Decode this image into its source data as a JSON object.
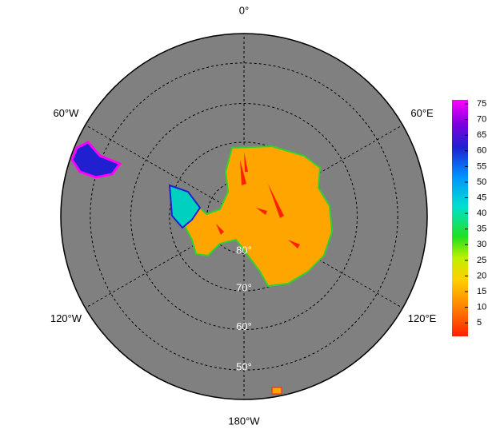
{
  "map": {
    "longitudes": [
      {
        "value": 0,
        "label": "0°"
      },
      {
        "value": 60,
        "label": "60°E"
      },
      {
        "value": 120,
        "label": "120°E"
      },
      {
        "value": 180,
        "label": "180°W"
      },
      {
        "value": -120,
        "label": "120°W"
      },
      {
        "value": -60,
        "label": "60°W"
      }
    ],
    "latitudes": [
      {
        "value": 80,
        "label": "80°"
      },
      {
        "value": 70,
        "label": "70°"
      },
      {
        "value": 60,
        "label": "60°"
      },
      {
        "value": 50,
        "label": "50°"
      }
    ],
    "colorbar": {
      "lim": [
        0.7,
        76.3
      ],
      "ticks": [
        5,
        10,
        15,
        20,
        25,
        30,
        35,
        40,
        45,
        50,
        55,
        60,
        65,
        70,
        75
      ]
    }
  }
}
